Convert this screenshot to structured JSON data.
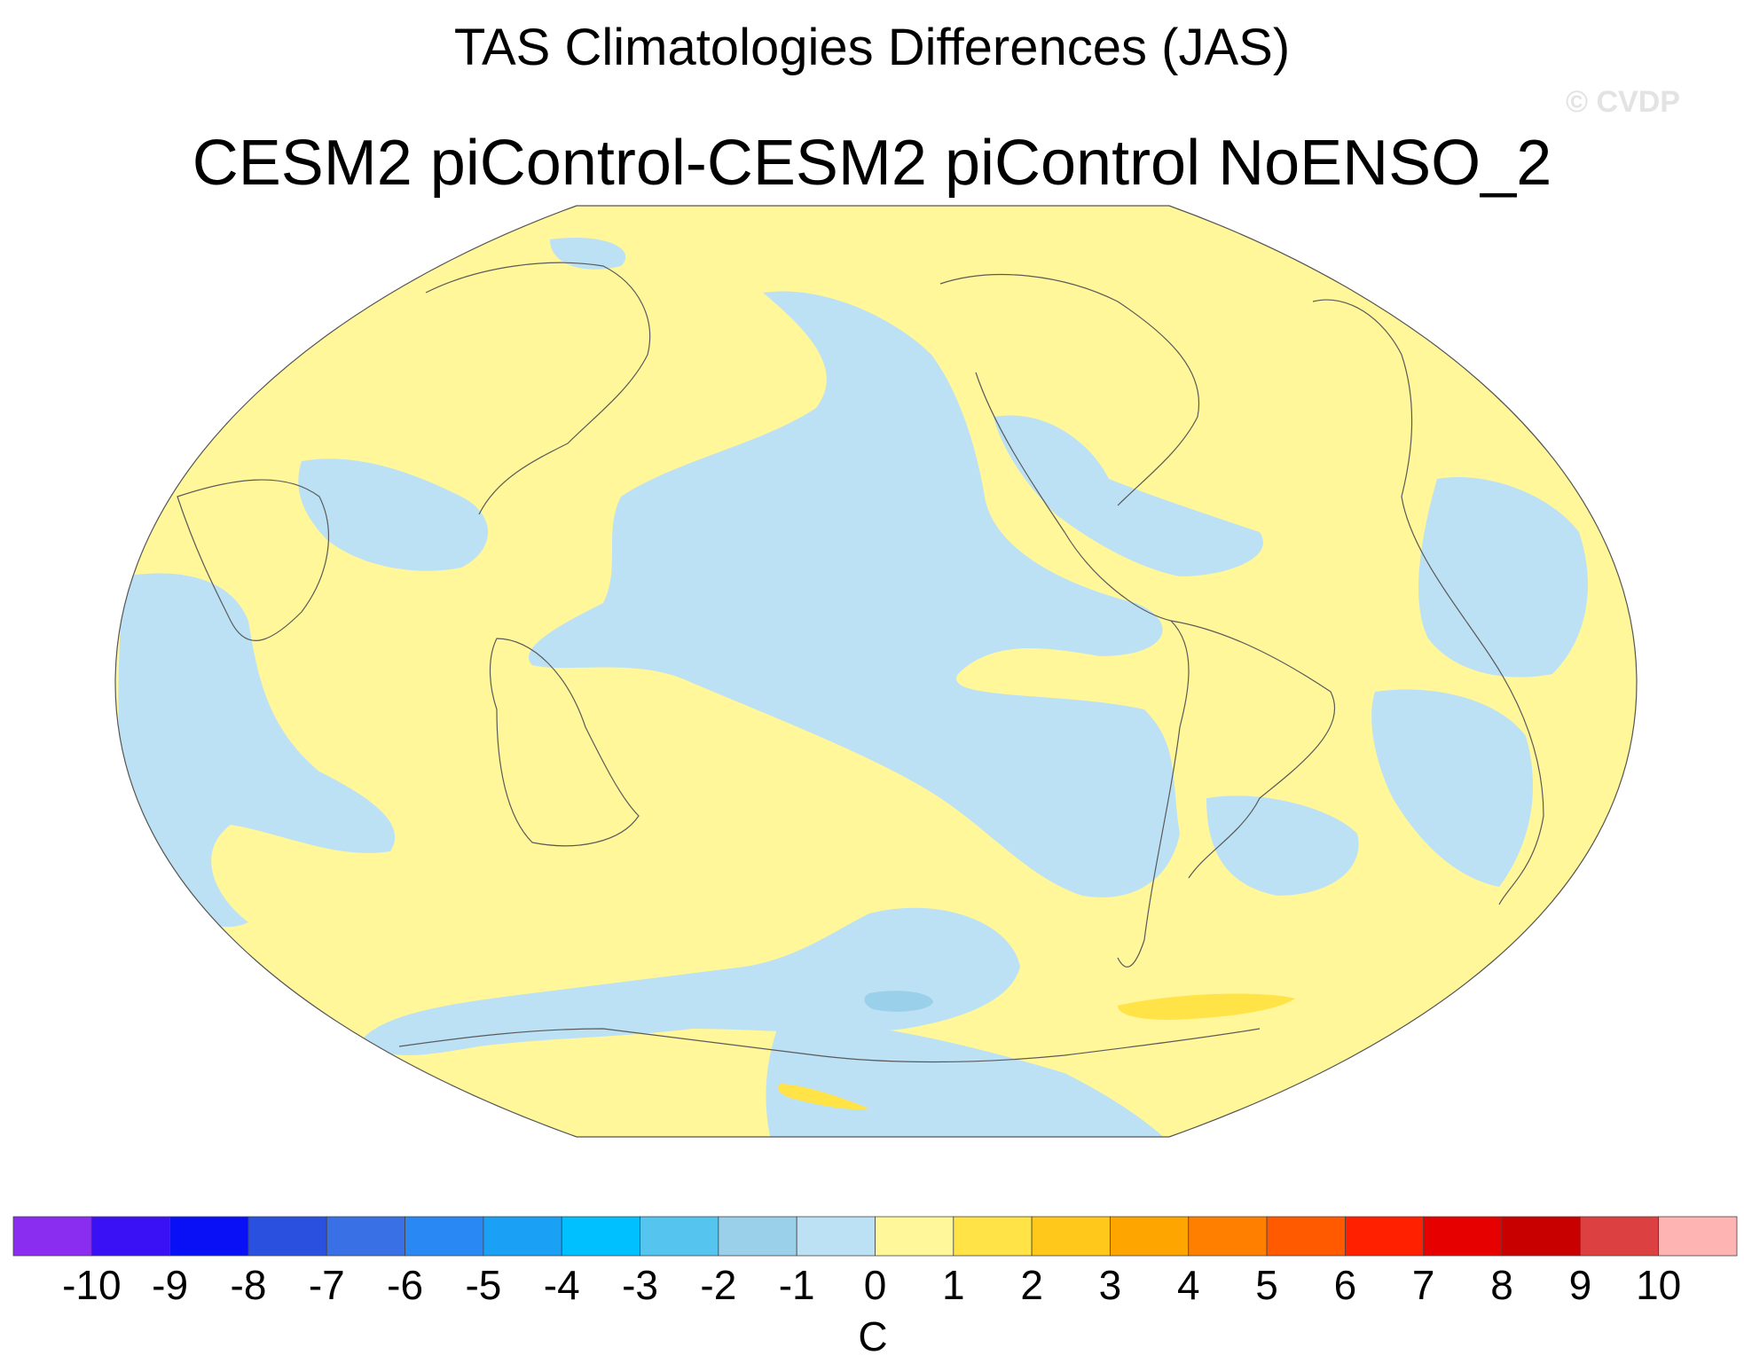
{
  "title": "TAS Climatologies Differences (JAS)",
  "subtitle": "CESM2 piControl-CESM2 piControl NoENSO_2",
  "watermark": "© CVDP",
  "map": {
    "projection": "robinson",
    "field_colors": {
      "cool_weak": "#bde1f4",
      "cool_mid": "#9ad0ea",
      "warm_weak": "#fff79a",
      "warm_mid": "#ffe347",
      "coastline": "#5a5a5a"
    }
  },
  "colorbar": {
    "units": "C",
    "labels": [
      "-10",
      "-9",
      "-8",
      "-7",
      "-6",
      "-5",
      "-4",
      "-3",
      "-2",
      "-1",
      "0",
      "1",
      "2",
      "3",
      "4",
      "5",
      "6",
      "7",
      "8",
      "9",
      "10"
    ],
    "colors": [
      "#8a2df0",
      "#3a10f5",
      "#0a10f5",
      "#2a50e0",
      "#3a70e5",
      "#2a88f5",
      "#1aa0f5",
      "#00c0ff",
      "#55c5f0",
      "#9ad0ea",
      "#bde1f4",
      "#fff79a",
      "#ffe347",
      "#ffc81a",
      "#ffa500",
      "#ff8000",
      "#ff5a00",
      "#ff2000",
      "#e60000",
      "#c80000",
      "#dc4040",
      "#ffb4b4"
    ]
  }
}
